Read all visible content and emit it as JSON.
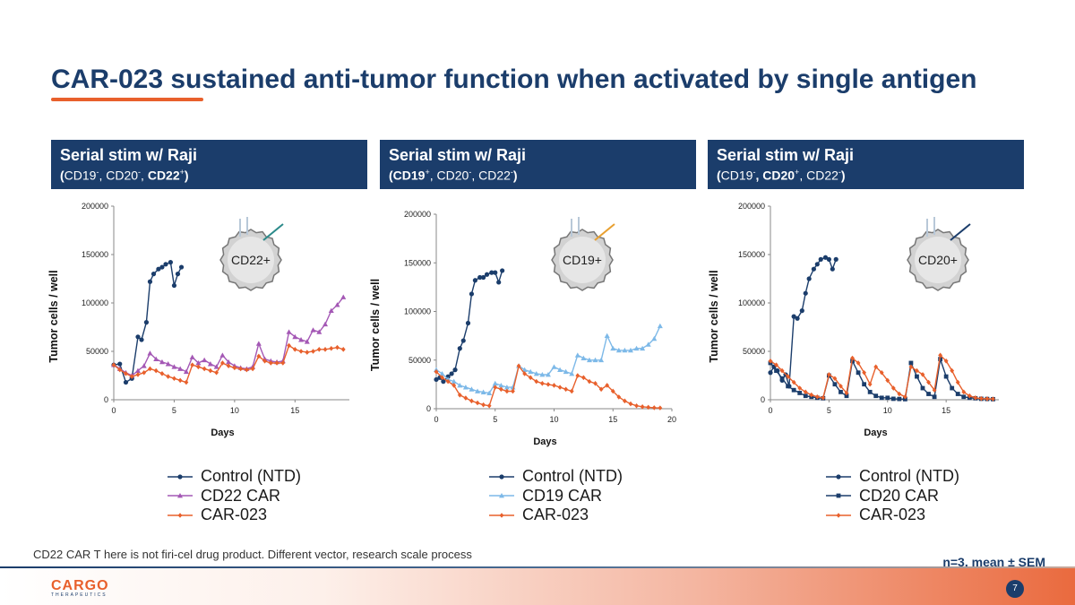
{
  "title": "CAR-023 sustained anti-tumor function when activated by single antigen",
  "colors": {
    "navy": "#1b3d6b",
    "orange": "#e8602c",
    "purple": "#a458b5",
    "lightblue": "#7db9e8",
    "ntd": "#1b3d6b"
  },
  "panels": [
    {
      "header": "Serial stim w/ Raji",
      "sub_open": "(",
      "sub_a": "CD19",
      "sup_a": "-",
      "sub_b": ", CD20",
      "sup_b": "-",
      "sub_c": ", ",
      "sub_d": "CD22",
      "sup_d": "+",
      "sub_close": ")"
    },
    {
      "header": "Serial stim w/ Raji",
      "sub_open": "(",
      "sub_a": "CD19",
      "sup_a": "+",
      "sub_b": ", CD20",
      "sup_b": "-",
      "sub_c": ", ",
      "sub_d": "CD22",
      "sup_d": "-",
      "sub_close": ")"
    },
    {
      "header": "Serial stim w/ Raji",
      "sub_open": "(",
      "sub_a": "CD19",
      "sup_a": "-",
      "sub_b": ", CD20",
      "sup_b": "+",
      "sub_c": ", ",
      "sub_d": "CD22",
      "sup_d": "-",
      "sub_close": ")"
    }
  ],
  "legends": [
    [
      "Control (NTD)",
      "CD22 CAR",
      "CAR-023"
    ],
    [
      "Control (NTD)",
      "CD19 CAR",
      "CAR-023"
    ],
    [
      "Control (NTD)",
      "CD20 CAR",
      "CAR-023"
    ]
  ],
  "footnote": "CD22 CAR T here is not firi-cel drug product.  Different vector, research scale process",
  "stats_note": "n=3, mean ± SEM",
  "logo": {
    "name": "CARGO",
    "sub": "THERAPEUTICS"
  },
  "page_number": "7",
  "chart_data": [
    {
      "type": "line",
      "title": "",
      "xlabel": "Days",
      "ylabel": "Tumor cells / well",
      "xlim": [
        0,
        19.5
      ],
      "ylim": [
        0,
        200000
      ],
      "xticks": [
        0,
        5,
        10,
        15
      ],
      "yticks": [
        0,
        50000,
        100000,
        150000,
        200000
      ],
      "annotation": "CD22+",
      "series": [
        {
          "name": "Control (NTD)",
          "color": "#1b3d6b",
          "marker": "circle",
          "x": [
            0,
            0.5,
            1,
            1.5,
            2,
            2.3,
            2.7,
            3,
            3.3,
            3.7,
            4,
            4.3,
            4.7,
            5,
            5.3,
            5.6
          ],
          "y": [
            36000,
            37000,
            18000,
            22000,
            65000,
            62000,
            80000,
            122000,
            130000,
            135000,
            137000,
            140000,
            142000,
            118000,
            130000,
            137000
          ]
        },
        {
          "name": "CD22 CAR",
          "color": "#a458b5",
          "marker": "triangle",
          "x": [
            0,
            0.5,
            1,
            1.5,
            2,
            2.5,
            3,
            3.5,
            4,
            4.5,
            5,
            5.5,
            6,
            6.5,
            7,
            7.5,
            8,
            8.5,
            9,
            9.5,
            10,
            10.5,
            11,
            11.5,
            12,
            12.5,
            13,
            13.5,
            14,
            14.5,
            15,
            15.5,
            16,
            16.5,
            17,
            17.5,
            18,
            18.5,
            19
          ],
          "y": [
            36000,
            32000,
            28000,
            25000,
            30000,
            35000,
            48000,
            42000,
            39000,
            37000,
            34000,
            32000,
            29000,
            44000,
            38000,
            41000,
            37000,
            34000,
            46000,
            39000,
            35000,
            33000,
            32000,
            34000,
            58000,
            42000,
            40000,
            39000,
            40000,
            70000,
            65000,
            62000,
            60000,
            72000,
            70000,
            78000,
            92000,
            98000,
            106000
          ]
        },
        {
          "name": "CAR-023",
          "color": "#e8602c",
          "marker": "diamond",
          "x": [
            0,
            0.5,
            1,
            1.5,
            2,
            2.5,
            3,
            3.5,
            4,
            4.5,
            5,
            5.5,
            6,
            6.5,
            7,
            7.5,
            8,
            8.5,
            9,
            9.5,
            10,
            10.5,
            11,
            11.5,
            12,
            12.5,
            13,
            13.5,
            14,
            14.5,
            15,
            15.5,
            16,
            16.5,
            17,
            17.5,
            18,
            18.5,
            19
          ],
          "y": [
            36000,
            31000,
            27000,
            24000,
            26000,
            28000,
            32000,
            30000,
            27000,
            24000,
            22000,
            20000,
            18000,
            36000,
            34000,
            32000,
            30000,
            28000,
            38000,
            35000,
            33000,
            32000,
            31000,
            32000,
            45000,
            40000,
            38000,
            38000,
            38000,
            56000,
            52000,
            50000,
            49000,
            50000,
            52000,
            52000,
            53000,
            54000,
            52000
          ]
        }
      ]
    },
    {
      "type": "line",
      "title": "",
      "xlabel": "Days",
      "ylabel": "Tumor cells / well",
      "xlim": [
        0,
        20
      ],
      "ylim": [
        0,
        200000
      ],
      "xticks": [
        0,
        5,
        10,
        15,
        20
      ],
      "yticks": [
        0,
        50000,
        100000,
        150000,
        200000
      ],
      "annotation": "CD19+",
      "series": [
        {
          "name": "Control (NTD)",
          "color": "#1b3d6b",
          "marker": "circle",
          "x": [
            0,
            0.3,
            0.6,
            1,
            1.3,
            1.6,
            2,
            2.3,
            2.7,
            3,
            3.3,
            3.7,
            4,
            4.3,
            4.7,
            5,
            5.3,
            5.6
          ],
          "y": [
            30000,
            32000,
            28000,
            33000,
            36000,
            40000,
            62000,
            70000,
            88000,
            118000,
            132000,
            135000,
            135000,
            138000,
            140000,
            140000,
            130000,
            142000
          ]
        },
        {
          "name": "CD19 CAR",
          "color": "#7db9e8",
          "marker": "triangle",
          "x": [
            0,
            0.5,
            1,
            1.5,
            2,
            2.5,
            3,
            3.5,
            4,
            4.5,
            5,
            5.5,
            6,
            6.5,
            7,
            7.5,
            8,
            8.5,
            9,
            9.5,
            10,
            10.5,
            11,
            11.5,
            12,
            12.5,
            13,
            13.5,
            14,
            14.5,
            15,
            15.5,
            16,
            16.5,
            17,
            17.5,
            18,
            18.5,
            19
          ],
          "y": [
            40000,
            36000,
            30000,
            28000,
            24000,
            22000,
            20000,
            18000,
            17000,
            16000,
            26000,
            24000,
            22000,
            22000,
            44000,
            40000,
            38000,
            36000,
            35000,
            35000,
            43000,
            40000,
            38000,
            36000,
            55000,
            52000,
            50000,
            50000,
            50000,
            75000,
            62000,
            60000,
            60000,
            60000,
            62000,
            62000,
            66000,
            72000,
            85000
          ]
        },
        {
          "name": "CAR-023",
          "color": "#e8602c",
          "marker": "diamond",
          "x": [
            0,
            0.5,
            1,
            1.5,
            2,
            2.5,
            3,
            3.5,
            4,
            4.5,
            5,
            5.5,
            6,
            6.5,
            7,
            7.5,
            8,
            8.5,
            9,
            9.5,
            10,
            10.5,
            11,
            11.5,
            12,
            12.5,
            13,
            13.5,
            14,
            14.5,
            15,
            15.5,
            16,
            16.5,
            17,
            17.5,
            18,
            18.5,
            19
          ],
          "y": [
            38000,
            32000,
            28000,
            24000,
            14000,
            11000,
            8000,
            6000,
            4000,
            3000,
            22000,
            20000,
            18000,
            18000,
            44000,
            36000,
            32000,
            28000,
            26000,
            25000,
            24000,
            22000,
            20000,
            18000,
            34000,
            32000,
            28000,
            26000,
            20000,
            24000,
            18000,
            12000,
            8000,
            5000,
            3000,
            2000,
            1500,
            1000,
            800
          ]
        }
      ]
    },
    {
      "type": "line",
      "title": "",
      "xlabel": "Days",
      "ylabel": "Tumor cells / well",
      "xlim": [
        0,
        19.5
      ],
      "ylim": [
        0,
        200000
      ],
      "xticks": [
        0,
        5,
        10,
        15
      ],
      "yticks": [
        0,
        50000,
        100000,
        150000,
        200000
      ],
      "annotation": "CD20+",
      "series": [
        {
          "name": "Control (NTD)",
          "color": "#1b3d6b",
          "marker": "circle",
          "x": [
            0,
            0.3,
            0.6,
            1,
            1.3,
            1.6,
            2,
            2.3,
            2.7,
            3,
            3.3,
            3.7,
            4,
            4.3,
            4.7,
            5,
            5.3,
            5.6
          ],
          "y": [
            28000,
            34000,
            30000,
            20000,
            26000,
            14000,
            86000,
            84000,
            92000,
            110000,
            125000,
            135000,
            140000,
            145000,
            147000,
            145000,
            135000,
            145000
          ]
        },
        {
          "name": "CD20 CAR",
          "color": "#1b3d6b",
          "marker": "square",
          "x": [
            0,
            0.5,
            1,
            1.5,
            2,
            2.5,
            3,
            3.5,
            4,
            4.5,
            5,
            5.5,
            6,
            6.5,
            7,
            7.5,
            8,
            8.5,
            9,
            9.5,
            10,
            10.5,
            11,
            11.5,
            12,
            12.5,
            13,
            13.5,
            14,
            14.5,
            15,
            15.5,
            16,
            16.5,
            17,
            17.5,
            18,
            18.5,
            19
          ],
          "y": [
            38000,
            30000,
            22000,
            14000,
            10000,
            7000,
            4000,
            3000,
            2000,
            1500,
            25000,
            16000,
            8000,
            4000,
            40000,
            28000,
            16000,
            8000,
            4000,
            2000,
            2000,
            1000,
            800,
            600,
            38000,
            24000,
            12000,
            6000,
            3000,
            42000,
            24000,
            12000,
            6000,
            3000,
            2000,
            1500,
            1000,
            800,
            600
          ]
        },
        {
          "name": "CAR-023",
          "color": "#e8602c",
          "marker": "diamond",
          "x": [
            0,
            0.5,
            1,
            1.5,
            2,
            2.5,
            3,
            3.5,
            4,
            4.5,
            5,
            5.5,
            6,
            6.5,
            7,
            7.5,
            8,
            8.5,
            9,
            9.5,
            10,
            10.5,
            11,
            11.5,
            12,
            12.5,
            13,
            13.5,
            14,
            14.5,
            15,
            15.5,
            16,
            16.5,
            17,
            17.5,
            18,
            18.5,
            19
          ],
          "y": [
            40000,
            36000,
            30000,
            24000,
            18000,
            12000,
            8000,
            5000,
            3000,
            2000,
            26000,
            22000,
            14000,
            7000,
            43000,
            38000,
            28000,
            16000,
            34000,
            28000,
            20000,
            12000,
            6000,
            3000,
            34000,
            30000,
            26000,
            18000,
            10000,
            46000,
            40000,
            30000,
            18000,
            8000,
            4000,
            2000,
            1200,
            1000,
            800
          ]
        }
      ]
    }
  ]
}
